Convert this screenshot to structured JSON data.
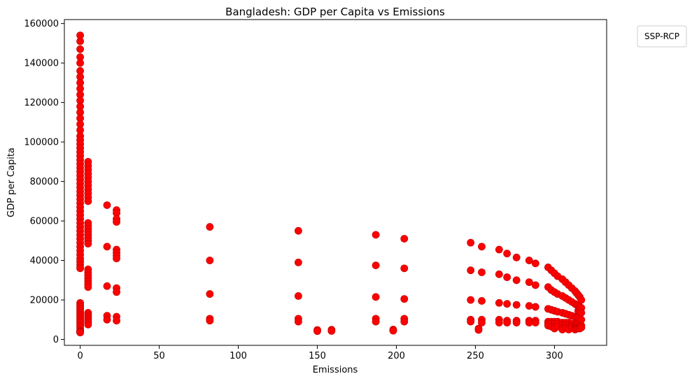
{
  "chart_data": {
    "type": "scatter",
    "title": "Bangladesh: GDP per Capita vs Emissions",
    "xlabel": "Emissions",
    "ylabel": "GDP per Capita",
    "xlim": [
      -10,
      333
    ],
    "ylim": [
      -3000,
      162000
    ],
    "xticks": [
      0,
      50,
      100,
      150,
      200,
      250,
      300
    ],
    "yticks": [
      0,
      20000,
      40000,
      60000,
      80000,
      100000,
      120000,
      140000,
      160000
    ],
    "legend": {
      "title": "SSP-RCP",
      "placement": "outside-top-right"
    },
    "grid": false,
    "marker_color": "#ff0000",
    "marker_edge_color": "#cc0000",
    "series": [
      {
        "x": [
          0,
          0,
          0,
          0,
          0,
          0,
          0,
          0,
          0,
          0,
          0,
          0,
          0,
          0,
          0,
          0,
          0,
          0,
          0,
          0,
          0,
          0,
          0,
          0,
          0,
          0,
          0,
          0,
          0,
          0,
          0,
          0,
          0,
          0,
          0,
          0,
          0,
          0,
          0,
          0,
          0,
          0,
          0,
          0,
          0,
          0,
          0,
          0,
          0,
          0,
          0,
          0,
          0,
          0,
          0,
          0,
          0,
          0,
          0,
          0,
          0,
          0,
          0,
          0,
          0,
          0,
          0,
          0,
          0,
          0,
          0,
          0,
          0,
          0,
          5,
          5,
          5,
          5,
          5,
          5,
          5,
          5,
          5,
          5,
          5,
          5,
          5,
          5,
          5,
          5,
          5,
          5,
          5,
          5,
          5,
          5,
          5,
          5,
          5,
          5,
          5,
          5,
          5,
          5,
          5,
          5,
          5,
          17,
          17,
          17,
          17,
          17,
          23,
          23,
          23,
          23,
          23,
          23,
          23,
          23,
          23,
          23,
          23,
          23,
          82,
          82,
          82,
          82,
          82,
          138,
          138,
          138,
          138,
          138,
          150,
          150,
          159,
          159,
          187,
          187,
          187,
          187,
          187,
          198,
          198,
          205,
          205,
          205,
          205,
          205,
          247,
          247,
          247,
          247,
          247,
          252,
          252,
          254,
          254,
          254,
          254,
          254,
          265,
          265,
          265,
          265,
          265,
          270,
          270,
          270,
          270,
          270,
          276,
          276,
          276,
          276,
          276,
          284,
          284,
          284,
          284,
          284,
          288,
          288,
          288,
          288,
          288,
          296,
          296,
          296,
          296,
          296,
          296,
          298,
          298,
          298,
          298,
          298,
          298,
          300,
          300,
          300,
          300,
          300,
          300,
          300,
          302,
          302,
          302,
          302,
          302,
          302,
          305,
          305,
          305,
          305,
          305,
          305,
          305,
          307,
          307,
          307,
          307,
          307,
          307,
          309,
          309,
          309,
          309,
          309,
          309,
          309,
          311,
          311,
          311,
          311,
          311,
          311,
          313,
          313,
          313,
          313,
          313,
          313,
          313,
          313,
          314,
          314,
          314,
          314,
          314,
          314,
          314,
          315,
          315,
          315,
          315,
          315,
          315,
          315,
          315,
          316,
          316,
          316,
          316,
          316,
          316,
          316,
          316,
          317,
          317,
          317,
          317,
          317,
          317
        ],
        "y": [
          154000,
          151000,
          147000,
          143000,
          140000,
          136000,
          133000,
          130000,
          127000,
          124000,
          121000,
          118000,
          115000,
          112000,
          109000,
          106000,
          103000,
          101000,
          99000,
          97000,
          95000,
          93000,
          91000,
          89000,
          87000,
          85000,
          83000,
          81000,
          79000,
          77000,
          75000,
          73000,
          71000,
          69000,
          67000,
          65000,
          63000,
          61000,
          59000,
          57000,
          55000,
          53000,
          51000,
          49000,
          47000,
          45000,
          43000,
          41000,
          39500,
          38000,
          36500,
          36000,
          18500,
          17500,
          16500,
          15500,
          14500,
          13500,
          12500,
          11500,
          10500,
          9500,
          8500,
          7500,
          6500,
          5500,
          4500,
          4200,
          4000,
          3900,
          3800,
          3700,
          3600,
          3500,
          90000,
          88000,
          86000,
          84000,
          82000,
          80000,
          78000,
          76000,
          74000,
          72000,
          70000,
          59000,
          57500,
          56000,
          54500,
          53000,
          51500,
          50000,
          48500,
          35500,
          34000,
          32500,
          31000,
          29500,
          28000,
          26500,
          13500,
          12500,
          11500,
          10500,
          9500,
          8500,
          7500,
          68000,
          47000,
          27000,
          12000,
          10000,
          65500,
          64000,
          61000,
          59500,
          45500,
          44000,
          42500,
          41000,
          26000,
          24000,
          11500,
          9500,
          57000,
          40000,
          23000,
          10500,
          9500,
          55000,
          39000,
          22000,
          10500,
          9000,
          4800,
          4200,
          4900,
          4300,
          53000,
          37500,
          21500,
          10500,
          9000,
          5000,
          4400,
          51000,
          36000,
          20500,
          10500,
          9000,
          49000,
          35000,
          20000,
          10000,
          9000,
          5500,
          4800,
          47000,
          34000,
          19500,
          10000,
          8500,
          45500,
          33000,
          18500,
          10000,
          8500,
          43500,
          31500,
          18000,
          9500,
          8500,
          41500,
          30000,
          17500,
          9500,
          8500,
          40000,
          29000,
          17000,
          9500,
          8500,
          38500,
          27500,
          16500,
          9500,
          8500,
          36500,
          26500,
          15500,
          9000,
          8000,
          7000,
          35000,
          25000,
          15000,
          9000,
          8000,
          6500,
          33500,
          24000,
          14500,
          9000,
          8000,
          6500,
          5500,
          32000,
          23000,
          14000,
          9000,
          8000,
          6500,
          30500,
          22000,
          13500,
          8500,
          7500,
          6000,
          5000,
          29000,
          21000,
          13000,
          8500,
          7500,
          6000,
          27500,
          20000,
          12500,
          8500,
          7500,
          6000,
          5000,
          26000,
          19000,
          12000,
          8000,
          7000,
          6000,
          24500,
          18000,
          11500,
          8000,
          7000,
          6000,
          5500,
          5000,
          23500,
          17500,
          11000,
          8000,
          7000,
          6000,
          5500,
          22500,
          17000,
          14500,
          11000,
          8000,
          7000,
          6000,
          5500,
          21500,
          16500,
          14000,
          10500,
          7500,
          6500,
          6000,
          5500,
          20000,
          16000,
          13500,
          10000,
          7000,
          6000
        ]
      }
    ]
  }
}
